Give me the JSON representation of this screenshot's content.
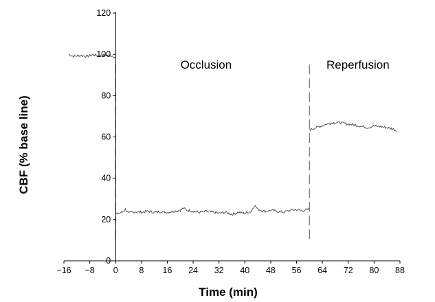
{
  "chart_data": {
    "type": "line",
    "title": "",
    "xlabel": "Time (min)",
    "ylabel": "CBF (% base line)",
    "xlim": [
      -16,
      88
    ],
    "ylim": [
      0,
      120
    ],
    "xticks": [
      -16,
      -8,
      0,
      8,
      16,
      24,
      32,
      40,
      48,
      56,
      64,
      72,
      80,
      88
    ],
    "xtick_labels": [
      "−16",
      "−8",
      "0",
      "8",
      "16",
      "24",
      "32",
      "40",
      "48",
      "56",
      "64",
      "72",
      "80",
      "88"
    ],
    "yticks": [
      0,
      20,
      40,
      60,
      80,
      100,
      120
    ],
    "ytick_labels": [
      "0",
      "20",
      "40",
      "60",
      "80",
      "100",
      "120"
    ],
    "grid": false,
    "line_color": "#555555",
    "phase_markers": [
      0,
      60
    ],
    "annotations": [
      {
        "text": "Occlusion",
        "x": 28,
        "y": 93
      },
      {
        "text": "Reperfusion",
        "x": 75,
        "y": 93
      }
    ],
    "series": [
      {
        "segments": [
          {
            "x": [
              -14.5,
              -13,
              -11,
              -9,
              -7,
              -5,
              -3,
              -1,
              0
            ],
            "y": [
              100,
              99,
              99.5,
              99,
              99.8,
              99.2,
              99.6,
              99.3,
              98.5
            ]
          },
          {
            "x": [
              0,
              2,
              3,
              4,
              6,
              8,
              10,
              12,
              14,
              16,
              18,
              20,
              21,
              22,
              24,
              26,
              28,
              30,
              32,
              34,
              36,
              38,
              40,
              42,
              43,
              44,
              46,
              48,
              50,
              52,
              54,
              56,
              58,
              60
            ],
            "y": [
              22.5,
              23.5,
              25,
              23,
              23.8,
              23.5,
              24,
              23.5,
              23.8,
              23.5,
              24,
              24.5,
              25.5,
              24.5,
              24,
              23.5,
              24,
              23.5,
              23,
              23.5,
              22.5,
              23.5,
              23,
              24,
              27,
              25,
              24,
              24.5,
              24,
              23.5,
              24.5,
              24.8,
              24.3,
              25
            ]
          },
          {
            "x": [
              60,
              62,
              64,
              66,
              68,
              70,
              72,
              74,
              76,
              78,
              80,
              82,
              84,
              86,
              87
            ],
            "y": [
              63.5,
              64.5,
              65.5,
              66.5,
              67,
              66.8,
              66.2,
              65.8,
              65.2,
              64.5,
              65.3,
              65,
              64.5,
              63.8,
              62.8
            ]
          }
        ]
      }
    ]
  }
}
